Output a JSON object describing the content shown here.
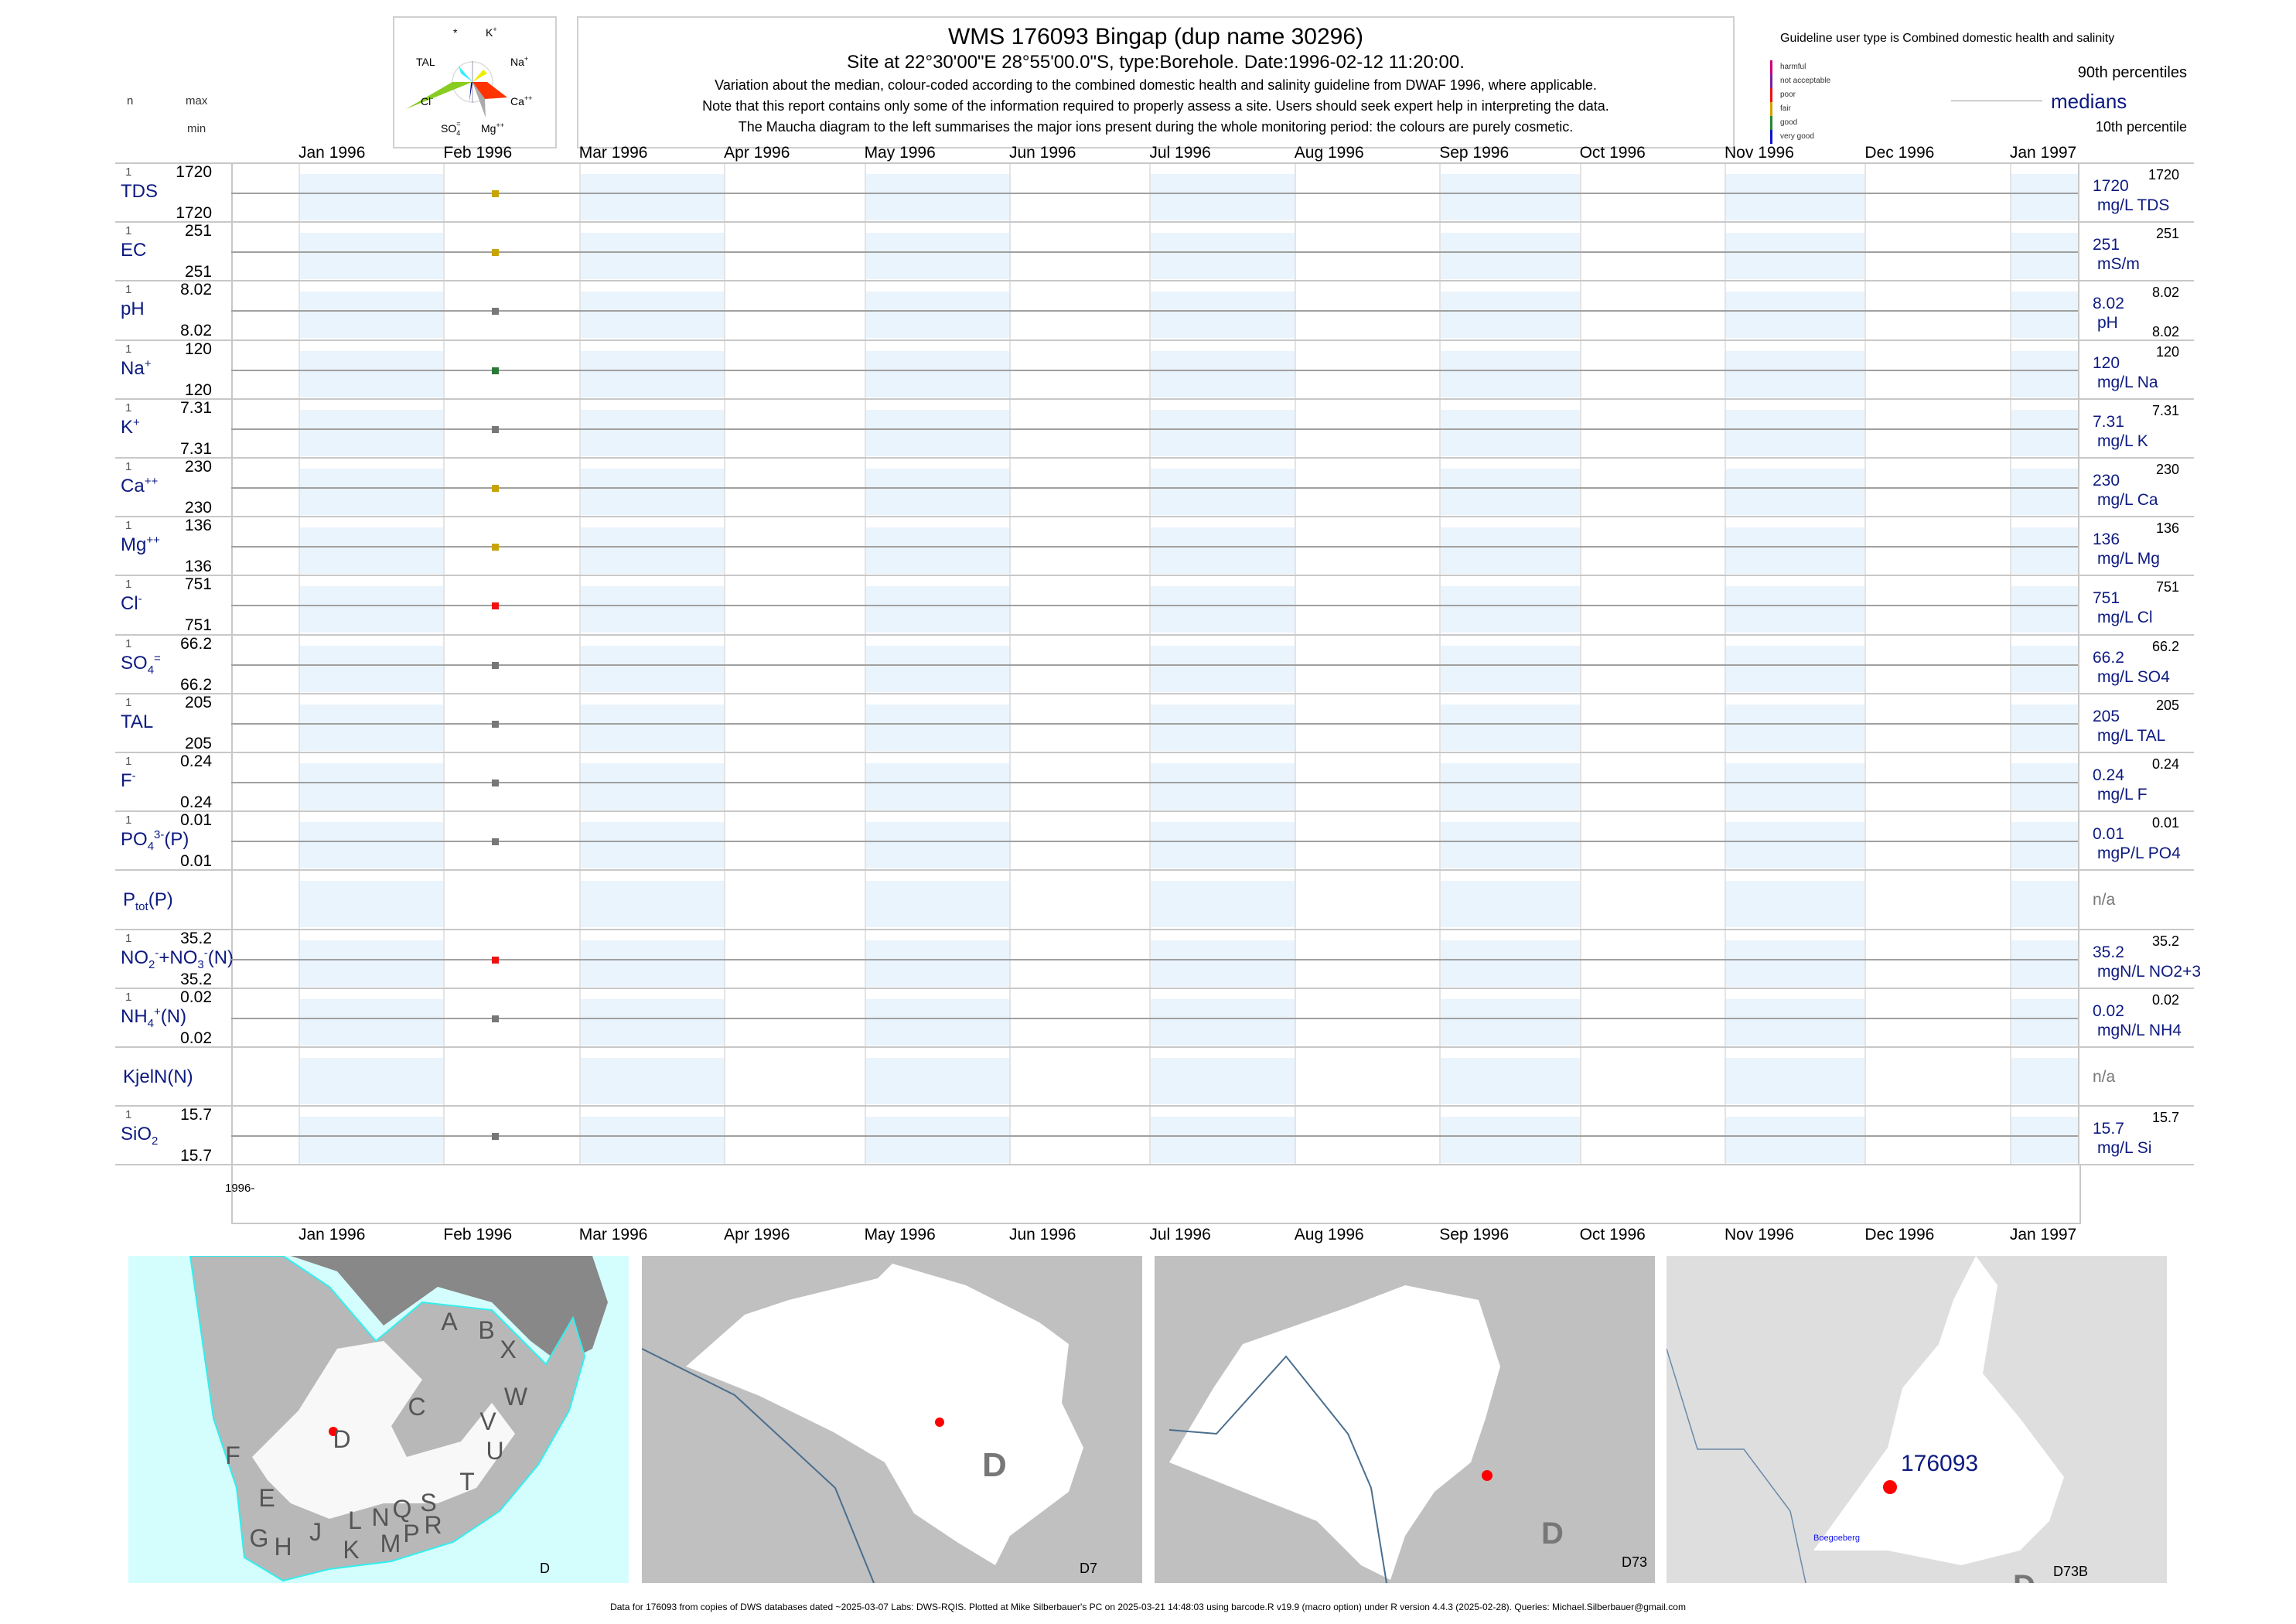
{
  "header": {
    "title": "WMS 176093  Bingap (dup name 30296)",
    "site": "Site at 22°30'00\"E 28°55'00.0\"S, type:Borehole. Date:1996-02-12 11:20:00.",
    "note1": "Variation about the median,  colour-coded according to the combined domestic health and salinity guideline from DWAF 1996, where applicable.",
    "note2": "Note that this report contains only some of the information required to properly assess a site. Users should seek expert help in interpreting the data.",
    "note3": "The Maucha diagram to the left summarises the major ions present during the whole monitoring period: the colours are purely cosmetic."
  },
  "maucha": {
    "labels": {
      "star": "*",
      "k": "K",
      "k_sup": "+",
      "na": "Na",
      "na_sup": "+",
      "ca": "Ca",
      "ca_sup": "++",
      "mg": "Mg",
      "mg_sup": "++",
      "so4": "SO",
      "so4_sub": "4",
      "so4_sup": "=",
      "cl": "Cl",
      "cl_sup": "-",
      "tal": "TAL"
    },
    "colors": {
      "tal": "#33eeff",
      "na": "#eeee00",
      "cl": "#88cc22",
      "ca": "#ff3300",
      "mg": "#aaaaaa",
      "so4": "#000088"
    }
  },
  "column_headers": {
    "n": "n",
    "max": "max",
    "min": "min"
  },
  "legend": {
    "guideline": "Guideline user type is Combined domestic health and salinity",
    "classes": [
      {
        "label": "harmful",
        "color": "#cc0077"
      },
      {
        "label": "not acceptable",
        "color": "#7a1fa0"
      },
      {
        "label": "poor",
        "color": "#ee1111"
      },
      {
        "label": "fair",
        "color": "#d4a000"
      },
      {
        "label": "good",
        "color": "#228833"
      },
      {
        "label": "very good",
        "color": "#1111cc"
      }
    ],
    "p90": "90th percentiles",
    "medians": "medians",
    "p10": "10th percentile"
  },
  "chart_data": {
    "type": "scatter",
    "x_axis": "date",
    "xlim": [
      "1995-12-17",
      "1997-01-15"
    ],
    "months": [
      "Jan 1996",
      "Feb 1996",
      "Mar 1996",
      "Apr 1996",
      "May 1996",
      "Jun 1996",
      "Jul 1996",
      "Aug 1996",
      "Sep 1996",
      "Oct 1996",
      "Nov 1996",
      "Dec 1996",
      "Jan 1997"
    ],
    "year_label": "1996-",
    "sample_date": "1996-02-12",
    "rows": [
      {
        "label": [
          [
            "TDS",
            ""
          ]
        ],
        "n": "1",
        "max": "1720",
        "min": "1720",
        "median": "1720",
        "unit": "mg/L TDS",
        "rmax": "1720",
        "color": "#c8a400",
        "value": 1720
      },
      {
        "label": [
          [
            "EC",
            ""
          ]
        ],
        "n": "1",
        "max": "251",
        "min": "251",
        "median": "251",
        "unit": "mS/m",
        "rmax": "251",
        "color": "#c8a400",
        "value": 251
      },
      {
        "label": [
          [
            "pH",
            ""
          ]
        ],
        "n": "1",
        "max": "8.02",
        "min": "8.02",
        "median": "8.02",
        "unit": "pH",
        "rmax": "8.02",
        "rmin": "8.02",
        "color": "#777777",
        "value": 8.02
      },
      {
        "label": [
          [
            "Na",
            ""
          ],
          [
            "+",
            "sup"
          ]
        ],
        "n": "1",
        "max": "120",
        "min": "120",
        "median": "120",
        "unit": "mg/L Na",
        "rmax": "120",
        "color": "#2a7a3a",
        "value": 120
      },
      {
        "label": [
          [
            "K",
            ""
          ],
          [
            "+",
            "sup"
          ]
        ],
        "n": "1",
        "max": "7.31",
        "min": "7.31",
        "median": "7.31",
        "unit": "mg/L K",
        "rmax": "7.31",
        "color": "#777777",
        "value": 7.31
      },
      {
        "label": [
          [
            "Ca",
            ""
          ],
          [
            "++",
            "sup"
          ]
        ],
        "n": "1",
        "max": "230",
        "min": "230",
        "median": "230",
        "unit": "mg/L Ca",
        "rmax": "230",
        "color": "#c8a400",
        "value": 230
      },
      {
        "label": [
          [
            "Mg",
            ""
          ],
          [
            "++",
            "sup"
          ]
        ],
        "n": "1",
        "max": "136",
        "min": "136",
        "median": "136",
        "unit": "mg/L Mg",
        "rmax": "136",
        "color": "#c8a400",
        "value": 136
      },
      {
        "label": [
          [
            "Cl",
            ""
          ],
          [
            "-",
            "sup"
          ]
        ],
        "n": "1",
        "max": "751",
        "min": "751",
        "median": "751",
        "unit": "mg/L Cl",
        "rmax": "751",
        "color": "#ee1111",
        "value": 751
      },
      {
        "label": [
          [
            "SO",
            ""
          ],
          [
            "4",
            "sub"
          ],
          [
            "=",
            "sup"
          ]
        ],
        "n": "1",
        "max": "66.2",
        "min": "66.2",
        "median": "66.2",
        "unit": "mg/L SO4",
        "rmax": "66.2",
        "color": "#777777",
        "value": 66.2
      },
      {
        "label": [
          [
            "TAL",
            ""
          ]
        ],
        "n": "1",
        "max": "205",
        "min": "205",
        "median": "205",
        "unit": "mg/L TAL",
        "rmax": "205",
        "color": "#777777",
        "value": 205
      },
      {
        "label": [
          [
            "F",
            ""
          ],
          [
            "-",
            "sup"
          ]
        ],
        "n": "1",
        "max": "0.24",
        "min": "0.24",
        "median": "0.24",
        "unit": "mg/L F",
        "rmax": "0.24",
        "color": "#777777",
        "value": 0.24
      },
      {
        "label": [
          [
            "PO",
            ""
          ],
          [
            "4",
            "sub"
          ],
          [
            "3-",
            "sup"
          ],
          [
            "(P)",
            ""
          ]
        ],
        "n": "1",
        "max": "0.01",
        "min": "0.01",
        "median": "0.01",
        "unit": "mgP/L PO4",
        "rmax": "0.01",
        "color": "#777777",
        "value": 0.01
      },
      {
        "label": [
          [
            "P",
            ""
          ],
          [
            "tot",
            "sub"
          ],
          [
            "(P)",
            ""
          ]
        ],
        "na": "n/a"
      },
      {
        "label": [
          [
            "NO",
            ""
          ],
          [
            "2",
            "sub"
          ],
          [
            "-",
            "sup"
          ],
          [
            "+NO",
            ""
          ],
          [
            "3",
            "sub"
          ],
          [
            "-",
            "sup"
          ],
          [
            "(N)",
            ""
          ]
        ],
        "n": "1",
        "max": "35.2",
        "min": "35.2",
        "median": "35.2",
        "unit": "mgN/L NO2+3",
        "rmax": "35.2",
        "color": "#ee1111",
        "value": 35.2
      },
      {
        "label": [
          [
            "NH",
            ""
          ],
          [
            "4",
            "sub"
          ],
          [
            "+",
            "sup"
          ],
          [
            "(N)",
            ""
          ]
        ],
        "n": "1",
        "max": "0.02",
        "min": "0.02",
        "median": "0.02",
        "unit": "mgN/L NH4",
        "rmax": "0.02",
        "color": "#777777",
        "value": 0.02
      },
      {
        "label": [
          [
            "KjelN(N)",
            ""
          ]
        ],
        "na": "n/a"
      },
      {
        "label": [
          [
            "SiO",
            ""
          ],
          [
            "2",
            "sub"
          ]
        ],
        "n": "1",
        "max": "15.7",
        "min": "15.7",
        "median": "15.7",
        "unit": "mg/L Si",
        "rmax": "15.7",
        "color": "#777777",
        "value": 15.7
      }
    ]
  },
  "maps": {
    "map1": {
      "label": "D",
      "regions": [
        "A",
        "B",
        "X",
        "W",
        "C",
        "V",
        "U",
        "D",
        "F",
        "T",
        "E",
        "S",
        "Q",
        "N",
        "L",
        "R",
        "J",
        "P",
        "G",
        "M",
        "H",
        "K"
      ]
    },
    "map2": {
      "label": "D7",
      "region": "D"
    },
    "map3": {
      "label": "D73",
      "region": "D"
    },
    "map4": {
      "label": "D73B",
      "region": "D",
      "site": "176093",
      "place": "Boegoeberg"
    }
  },
  "footer": "Data for 176093 from copies of DWS databases dated ~2025-03-07 Labs: DWS-RQIS. Plotted at Mike Silberbauer's PC on 2025-03-21 14:48:03 using barcode.R v19.9 (macro option) under R version 4.4.3 (2025-02-28). Queries: Michael.Silberbauer@gmail.com"
}
